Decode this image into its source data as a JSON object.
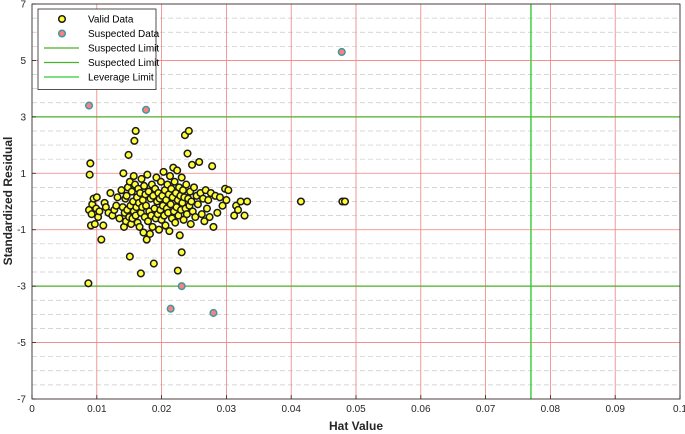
{
  "chart_data": {
    "type": "scatter",
    "xlabel": "Hat Value",
    "ylabel": "Standardized Residual",
    "xlim": [
      0,
      0.1
    ],
    "ylim": [
      -7,
      7
    ],
    "x_ticks": [
      "0",
      "0.01",
      "0.02",
      "0.03",
      "0.04",
      "0.05",
      "0.06",
      "0.07",
      "0.08",
      "0.09",
      "0.1"
    ],
    "y_ticks": [
      "-7",
      "-5",
      "-3",
      "-1",
      "1",
      "3",
      "5",
      "7"
    ],
    "grid": true,
    "legend_position": "top-left",
    "colors": {
      "major_grid": "#f08080",
      "minor_grid": "#c8c8c8",
      "suspected_limit": "#4caf2a",
      "leverage_limit": "#33cc33",
      "valid_fill": "#ffff33",
      "suspected_fill": "#ff7f7f",
      "suspected_edge": "#3a9aa0",
      "marker_edge": "#1a1a1a"
    },
    "legend": [
      {
        "label": "Valid Data",
        "kind": "valid-marker"
      },
      {
        "label": "Suspected Data",
        "kind": "suspected-marker"
      },
      {
        "label": "Suspected Limit",
        "kind": "line"
      },
      {
        "label": "Suspected Limit",
        "kind": "line"
      },
      {
        "label": "Leverage Limit",
        "kind": "line"
      }
    ],
    "suspected_limits": [
      3,
      -3
    ],
    "leverage_limit": 0.077,
    "series": [
      {
        "name": "Valid Data",
        "points": [
          [
            0.0087,
            -2.9
          ],
          [
            0.0088,
            -0.3
          ],
          [
            0.0089,
            0.95
          ],
          [
            0.009,
            1.35
          ],
          [
            0.0091,
            -0.85
          ],
          [
            0.0092,
            -0.45
          ],
          [
            0.0093,
            -0.1
          ],
          [
            0.0095,
            0.1
          ],
          [
            0.0097,
            -0.8
          ],
          [
            0.0099,
            -0.25
          ],
          [
            0.01,
            0.15
          ],
          [
            0.0102,
            -0.55
          ],
          [
            0.0104,
            -0.35
          ],
          [
            0.0107,
            -1.35
          ],
          [
            0.011,
            -0.85
          ],
          [
            0.0112,
            -0.05
          ],
          [
            0.0114,
            -0.2
          ],
          [
            0.0118,
            -0.4
          ],
          [
            0.0121,
            0.3
          ],
          [
            0.0124,
            -0.5
          ],
          [
            0.0127,
            -0.3
          ],
          [
            0.013,
            -0.15
          ],
          [
            0.0132,
            0.15
          ],
          [
            0.0135,
            -0.6
          ],
          [
            0.0138,
            0.4
          ],
          [
            0.014,
            -0.2
          ],
          [
            0.0141,
            1.0
          ],
          [
            0.0142,
            -0.9
          ],
          [
            0.0143,
            -0.4
          ],
          [
            0.0144,
            0.1
          ],
          [
            0.0145,
            -0.7
          ],
          [
            0.0146,
            0.2
          ],
          [
            0.0147,
            -0.3
          ],
          [
            0.0148,
            0.5
          ],
          [
            0.0149,
            1.65
          ],
          [
            0.015,
            -0.55
          ],
          [
            0.0151,
            -1.95
          ],
          [
            0.0151,
            0.7
          ],
          [
            0.0152,
            -0.15
          ],
          [
            0.0153,
            -0.8
          ],
          [
            0.0154,
            0.35
          ],
          [
            0.0155,
            -0.6
          ],
          [
            0.0156,
            0.0
          ],
          [
            0.0157,
            0.9
          ],
          [
            0.0157,
            -0.35
          ],
          [
            0.0158,
            2.15
          ],
          [
            0.0159,
            0.6
          ],
          [
            0.016,
            -0.5
          ],
          [
            0.016,
            2.5
          ],
          [
            0.0161,
            -0.2
          ],
          [
            0.0162,
            0.15
          ],
          [
            0.0163,
            -0.75
          ],
          [
            0.0164,
            0.45
          ],
          [
            0.0165,
            -0.05
          ],
          [
            0.0166,
            -0.9
          ],
          [
            0.0167,
            0.3
          ],
          [
            0.0168,
            -2.55
          ],
          [
            0.0168,
            -0.4
          ],
          [
            0.0169,
            0.8
          ],
          [
            0.017,
            -0.2
          ],
          [
            0.0171,
            0.05
          ],
          [
            0.0172,
            -1.1
          ],
          [
            0.0173,
            0.55
          ],
          [
            0.0174,
            -0.55
          ],
          [
            0.0175,
            0.25
          ],
          [
            0.0176,
            -0.15
          ],
          [
            0.0177,
            -1.35
          ],
          [
            0.0178,
            0.95
          ],
          [
            0.0179,
            -0.7
          ],
          [
            0.018,
            0.35
          ],
          [
            0.0181,
            -0.35
          ],
          [
            0.0182,
            -1.15
          ],
          [
            0.0183,
            0.1
          ],
          [
            0.0184,
            -0.5
          ],
          [
            0.0185,
            0.6
          ],
          [
            0.0186,
            -0.9
          ],
          [
            0.0187,
            0.2
          ],
          [
            0.0188,
            -2.2
          ],
          [
            0.0189,
            -0.25
          ],
          [
            0.019,
            0.45
          ],
          [
            0.0191,
            -0.6
          ],
          [
            0.0192,
            0.85
          ],
          [
            0.0193,
            0.0
          ],
          [
            0.0194,
            -0.45
          ],
          [
            0.0195,
            0.3
          ],
          [
            0.0196,
            -1.0
          ],
          [
            0.0197,
            0.1
          ],
          [
            0.0198,
            -0.3
          ],
          [
            0.0199,
            0.7
          ],
          [
            0.02,
            -0.65
          ],
          [
            0.0201,
            0.2
          ],
          [
            0.0202,
            -0.15
          ],
          [
            0.0203,
            1.05
          ],
          [
            0.0204,
            -0.5
          ],
          [
            0.0205,
            0.4
          ],
          [
            0.0206,
            -0.85
          ],
          [
            0.0207,
            0.05
          ],
          [
            0.0208,
            -0.25
          ],
          [
            0.0209,
            0.6
          ],
          [
            0.021,
            -0.4
          ],
          [
            0.0211,
            0.25
          ],
          [
            0.0212,
            -1.05
          ],
          [
            0.0213,
            0.9
          ],
          [
            0.0214,
            -0.1
          ],
          [
            0.0215,
            0.45
          ],
          [
            0.0216,
            -0.6
          ],
          [
            0.0217,
            0.15
          ],
          [
            0.0218,
            1.2
          ],
          [
            0.0219,
            -0.35
          ],
          [
            0.022,
            0.7
          ],
          [
            0.0221,
            -0.75
          ],
          [
            0.0222,
            0.3
          ],
          [
            0.0223,
            -0.2
          ],
          [
            0.0224,
            1.1
          ],
          [
            0.0225,
            -2.45
          ],
          [
            0.0225,
            0.05
          ],
          [
            0.0226,
            -0.5
          ],
          [
            0.0227,
            0.5
          ],
          [
            0.0228,
            -1.2
          ],
          [
            0.0229,
            0.2
          ],
          [
            0.023,
            -0.3
          ],
          [
            0.0231,
            0.85
          ],
          [
            0.0231,
            -1.8
          ],
          [
            0.0232,
            -0.05
          ],
          [
            0.0233,
            0.4
          ],
          [
            0.0234,
            -0.65
          ],
          [
            0.0235,
            0.15
          ],
          [
            0.0236,
            2.35
          ],
          [
            0.0237,
            -0.25
          ],
          [
            0.0238,
            0.6
          ],
          [
            0.0239,
            -0.45
          ],
          [
            0.024,
            1.7
          ],
          [
            0.0241,
            0.1
          ],
          [
            0.0242,
            2.5
          ],
          [
            0.0243,
            -0.15
          ],
          [
            0.0244,
            0.35
          ],
          [
            0.0245,
            -0.8
          ],
          [
            0.0246,
            0.0
          ],
          [
            0.0247,
            1.3
          ],
          [
            0.0248,
            -0.35
          ],
          [
            0.025,
            0.5
          ],
          [
            0.0252,
            -0.55
          ],
          [
            0.0254,
            0.2
          ],
          [
            0.0256,
            -0.1
          ],
          [
            0.0258,
            1.4
          ],
          [
            0.026,
            0.3
          ],
          [
            0.0262,
            -0.45
          ],
          [
            0.0264,
            0.1
          ],
          [
            0.0266,
            -0.7
          ],
          [
            0.0268,
            0.4
          ],
          [
            0.027,
            -0.25
          ],
          [
            0.0272,
            0.05
          ],
          [
            0.0274,
            -0.55
          ],
          [
            0.0276,
            0.3
          ],
          [
            0.0278,
            1.25
          ],
          [
            0.028,
            -0.9
          ],
          [
            0.0283,
            0.2
          ],
          [
            0.0286,
            -0.4
          ],
          [
            0.029,
            0.15
          ],
          [
            0.0294,
            -0.15
          ],
          [
            0.0298,
            0.45
          ],
          [
            0.03,
            0.05
          ],
          [
            0.0303,
            0.4
          ],
          [
            0.0312,
            -0.5
          ],
          [
            0.0315,
            -0.15
          ],
          [
            0.0318,
            -0.3
          ],
          [
            0.0322,
            0.0
          ],
          [
            0.0328,
            -0.5
          ],
          [
            0.0332,
            0.0
          ],
          [
            0.0415,
            0.0
          ],
          [
            0.0479,
            0.0
          ],
          [
            0.0483,
            0.0
          ]
        ]
      },
      {
        "name": "Suspected Data",
        "points": [
          [
            0.0088,
            3.4
          ],
          [
            0.0176,
            3.25
          ],
          [
            0.0478,
            5.3
          ],
          [
            0.0214,
            -3.8
          ],
          [
            0.0231,
            -3.0
          ],
          [
            0.028,
            -3.95
          ]
        ]
      }
    ]
  }
}
